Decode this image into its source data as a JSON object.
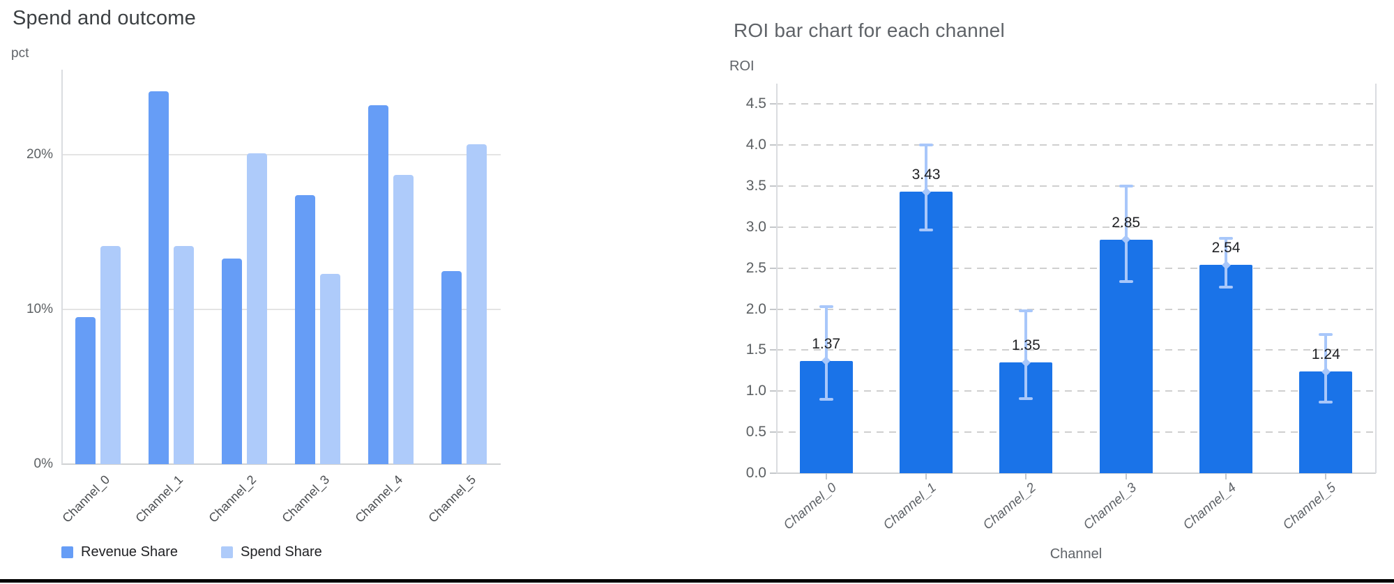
{
  "chart_data": [
    {
      "type": "bar",
      "title": "Spend and outcome",
      "ylabel": "pct",
      "xlabel": "",
      "categories": [
        "Channel_0",
        "Channel_1",
        "Channel_2",
        "Channel_3",
        "Channel_4",
        "Channel_5"
      ],
      "series": [
        {
          "name": "Revenue Share",
          "color": "#669df6",
          "values": [
            9.5,
            24.1,
            13.3,
            17.4,
            23.2,
            12.5
          ]
        },
        {
          "name": "Spend Share",
          "color": "#aecbfa",
          "values": [
            14.1,
            14.1,
            20.1,
            12.3,
            18.7,
            20.7
          ]
        }
      ],
      "yticks": [
        {
          "value": 0,
          "label": "0%"
        },
        {
          "value": 10,
          "label": "10%"
        },
        {
          "value": 20,
          "label": "20%"
        }
      ],
      "ylim": [
        0,
        25.5
      ],
      "grid": "solid",
      "legend_position": "bottom"
    },
    {
      "type": "bar",
      "title": "ROI bar chart for each channel",
      "ylabel": "ROI",
      "xlabel": "Channel",
      "categories": [
        "Channel_0",
        "Channel_1",
        "Channel_2",
        "Channel_3",
        "Channel_4",
        "Channel_5"
      ],
      "values": [
        1.37,
        3.43,
        1.35,
        2.85,
        2.54,
        1.24
      ],
      "value_labels": [
        "1.37",
        "3.43",
        "1.35",
        "2.85",
        "2.54",
        "1.24"
      ],
      "error_low": [
        0.88,
        2.95,
        0.89,
        2.32,
        2.25,
        0.85
      ],
      "error_high": [
        2.05,
        4.02,
        2.0,
        3.52,
        2.88,
        1.71
      ],
      "bar_color": "#1a73e8",
      "error_color": "#a8c7fa",
      "yticks": [
        "0.0",
        "0.5",
        "1.0",
        "1.5",
        "2.0",
        "2.5",
        "3.0",
        "3.5",
        "4.0",
        "4.5"
      ],
      "ylim": [
        0,
        4.75
      ],
      "grid": "dashed",
      "legend_position": "none"
    }
  ]
}
